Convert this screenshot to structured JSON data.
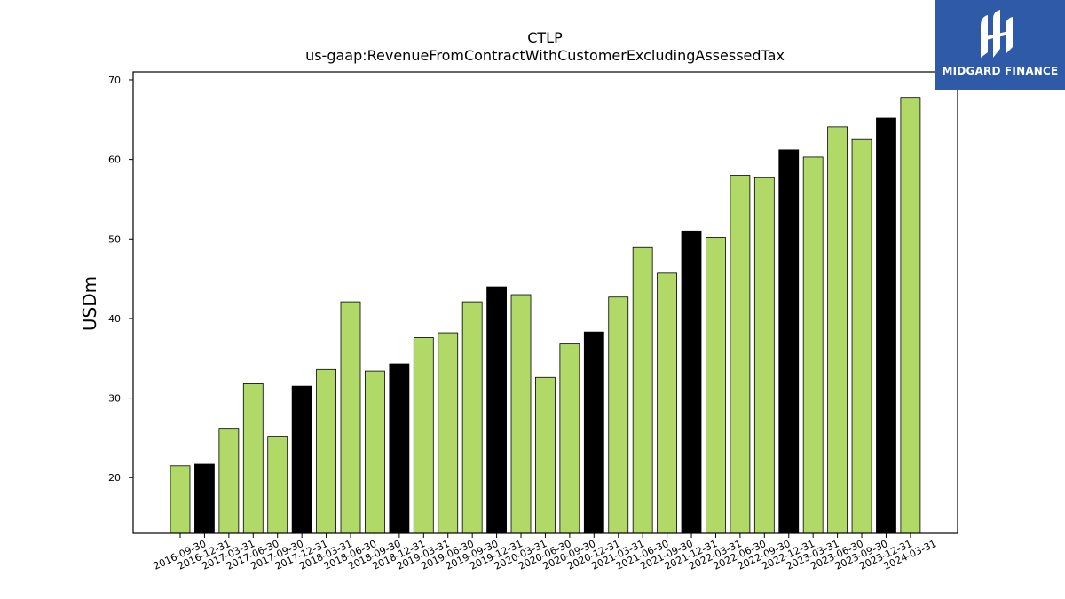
{
  "brand": {
    "name": "MIDGARD FINANCE",
    "background": "#2f5aa8",
    "text_color": "#ffffff",
    "icon": "midgard-logo-icon"
  },
  "chart_data": {
    "type": "bar",
    "title": "CTLP",
    "subtitle": "us-gaap:RevenueFromContractWithCustomerExcludingAssessedTax",
    "xlabel": "",
    "ylabel": "USDm",
    "ylim": [
      13,
      71
    ],
    "yticks": [
      20,
      30,
      40,
      50,
      60,
      70
    ],
    "grid": false,
    "colors": {
      "quarter": "#b0d968",
      "fiscal_year_end": "#000000",
      "edge": "#000000"
    },
    "categories": [
      "2016-09-30",
      "2016-12-31",
      "2017-03-31",
      "2017-06-30",
      "2017-09-30",
      "2017-12-31",
      "2018-03-31",
      "2018-06-30",
      "2018-09-30",
      "2018-12-31",
      "2019-03-31",
      "2019-06-30",
      "2019-09-30",
      "2019-12-31",
      "2020-03-31",
      "2020-06-30",
      "2020-09-30",
      "2020-12-31",
      "2021-03-31",
      "2021-06-30",
      "2021-09-30",
      "2021-12-31",
      "2022-03-31",
      "2022-06-30",
      "2022-09-30",
      "2022-12-31",
      "2023-03-31",
      "2023-06-30",
      "2023-09-30",
      "2023-12-31",
      "2024-03-31"
    ],
    "values": [
      21.5,
      21.7,
      26.2,
      31.8,
      25.2,
      31.5,
      33.6,
      42.1,
      33.4,
      34.3,
      37.6,
      38.2,
      42.1,
      44.0,
      43.0,
      32.6,
      36.8,
      38.3,
      42.7,
      49.0,
      45.7,
      51.0,
      50.2,
      58.0,
      57.7,
      61.2,
      60.3,
      64.1,
      62.5,
      65.2,
      67.8
    ],
    "highlight": [
      false,
      true,
      false,
      false,
      false,
      true,
      false,
      false,
      false,
      true,
      false,
      false,
      false,
      true,
      false,
      false,
      false,
      true,
      false,
      false,
      false,
      true,
      false,
      false,
      false,
      true,
      false,
      false,
      false,
      true,
      false
    ]
  }
}
